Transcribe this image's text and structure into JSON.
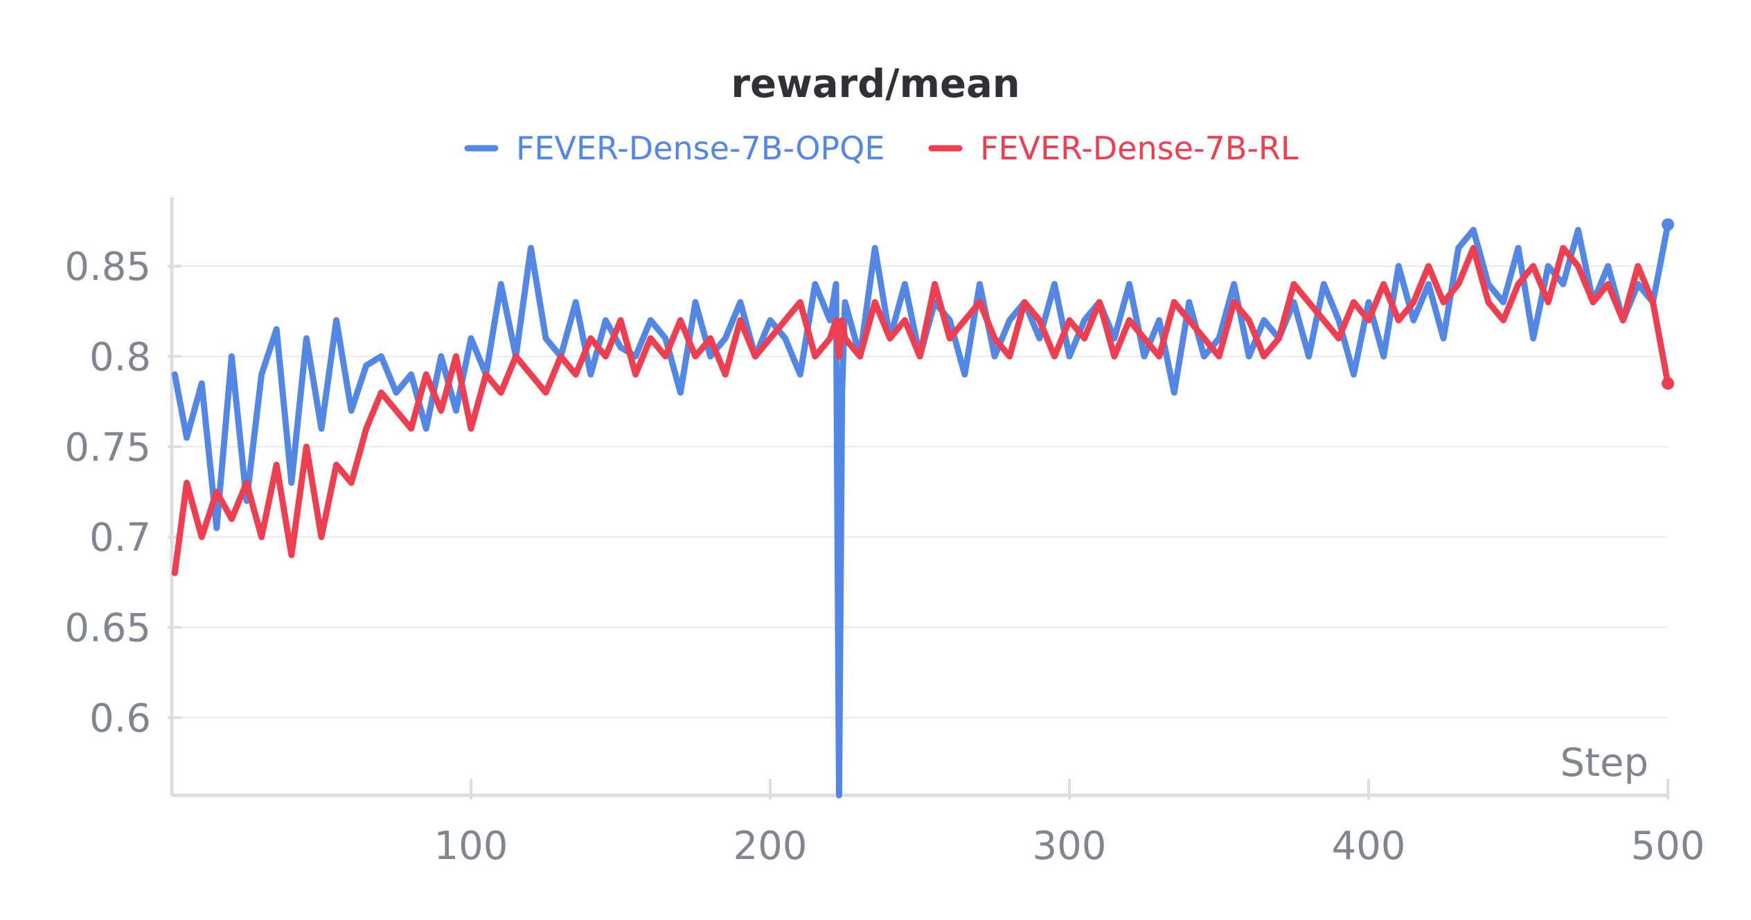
{
  "chart_data": {
    "type": "line",
    "title": "reward/mean",
    "xlabel": "Step",
    "ylabel": "",
    "xlim": [
      0,
      500
    ],
    "ylim": [
      0.557,
      0.888
    ],
    "x_ticks": [
      100,
      200,
      300,
      400,
      500
    ],
    "y_ticks": [
      0.6,
      0.65,
      0.7,
      0.75,
      0.8,
      0.85
    ],
    "y_tick_labels": [
      "0.6",
      "0.65",
      "0.7",
      "0.75",
      "0.8",
      "0.85"
    ],
    "grid": true,
    "legend_position": "top-center",
    "x": [
      1,
      5,
      10,
      15,
      20,
      25,
      30,
      35,
      40,
      45,
      50,
      55,
      60,
      65,
      70,
      75,
      80,
      85,
      90,
      95,
      100,
      105,
      110,
      115,
      120,
      125,
      130,
      135,
      140,
      145,
      150,
      155,
      160,
      165,
      170,
      175,
      180,
      185,
      190,
      195,
      200,
      205,
      210,
      215,
      220,
      222,
      223,
      224,
      225,
      230,
      235,
      240,
      245,
      250,
      255,
      260,
      265,
      270,
      275,
      280,
      285,
      290,
      295,
      300,
      305,
      310,
      315,
      320,
      325,
      330,
      335,
      340,
      345,
      350,
      355,
      360,
      365,
      370,
      375,
      380,
      385,
      390,
      395,
      400,
      405,
      410,
      415,
      420,
      425,
      430,
      435,
      440,
      445,
      450,
      455,
      460,
      465,
      470,
      475,
      480,
      485,
      490,
      495,
      500
    ],
    "series": [
      {
        "name": "FEVER-Dense-7B-OPQE",
        "color": "#5387e6",
        "end_marker": true,
        "values": [
          0.79,
          0.755,
          0.785,
          0.705,
          0.8,
          0.72,
          0.79,
          0.815,
          0.73,
          0.81,
          0.76,
          0.82,
          0.77,
          0.795,
          0.8,
          0.78,
          0.79,
          0.76,
          0.8,
          0.77,
          0.81,
          0.79,
          0.84,
          0.8,
          0.86,
          0.81,
          0.8,
          0.83,
          0.79,
          0.82,
          0.805,
          0.8,
          0.82,
          0.81,
          0.78,
          0.83,
          0.8,
          0.81,
          0.83,
          0.8,
          0.82,
          0.81,
          0.79,
          0.84,
          0.82,
          0.84,
          0.557,
          0.78,
          0.83,
          0.8,
          0.86,
          0.81,
          0.84,
          0.8,
          0.83,
          0.82,
          0.79,
          0.84,
          0.8,
          0.82,
          0.83,
          0.81,
          0.84,
          0.8,
          0.82,
          0.83,
          0.81,
          0.84,
          0.8,
          0.82,
          0.78,
          0.83,
          0.8,
          0.81,
          0.84,
          0.8,
          0.82,
          0.81,
          0.83,
          0.8,
          0.84,
          0.82,
          0.79,
          0.83,
          0.8,
          0.85,
          0.82,
          0.84,
          0.81,
          0.86,
          0.87,
          0.84,
          0.83,
          0.86,
          0.81,
          0.85,
          0.84,
          0.87,
          0.83,
          0.85,
          0.82,
          0.84,
          0.83,
          0.873
        ]
      },
      {
        "name": "FEVER-Dense-7B-RL",
        "color": "#ef3e4f",
        "end_marker": true,
        "values": [
          0.68,
          0.73,
          0.7,
          0.725,
          0.71,
          0.73,
          0.7,
          0.74,
          0.69,
          0.75,
          0.7,
          0.74,
          0.73,
          0.76,
          0.78,
          0.77,
          0.76,
          0.79,
          0.77,
          0.8,
          0.76,
          0.79,
          0.78,
          0.8,
          0.79,
          0.78,
          0.8,
          0.79,
          0.81,
          0.8,
          0.82,
          0.79,
          0.81,
          0.8,
          0.82,
          0.8,
          0.81,
          0.79,
          0.82,
          0.8,
          0.81,
          0.82,
          0.83,
          0.8,
          0.81,
          0.82,
          0.8,
          0.82,
          0.81,
          0.8,
          0.83,
          0.81,
          0.82,
          0.8,
          0.84,
          0.81,
          0.82,
          0.83,
          0.81,
          0.8,
          0.83,
          0.82,
          0.8,
          0.82,
          0.81,
          0.83,
          0.8,
          0.82,
          0.81,
          0.8,
          0.83,
          0.82,
          0.81,
          0.8,
          0.83,
          0.82,
          0.8,
          0.81,
          0.84,
          0.83,
          0.82,
          0.81,
          0.83,
          0.82,
          0.84,
          0.82,
          0.83,
          0.85,
          0.83,
          0.84,
          0.86,
          0.83,
          0.82,
          0.84,
          0.85,
          0.83,
          0.86,
          0.85,
          0.83,
          0.84,
          0.82,
          0.85,
          0.83,
          0.785
        ]
      }
    ]
  }
}
